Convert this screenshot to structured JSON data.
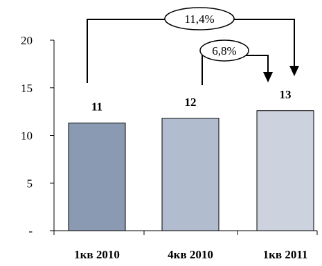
{
  "chart_data": {
    "type": "bar",
    "categories": [
      "1кв 2010",
      "4кв 2010",
      "1кв 2011"
    ],
    "values": [
      11.3,
      11.8,
      12.6
    ],
    "data_labels": [
      "11",
      "12",
      "13"
    ],
    "colors": [
      "#8a9ab3",
      "#b2bccf",
      "#cdd3de"
    ],
    "ylim": [
      0,
      20
    ],
    "yticks": [
      {
        "value": 0,
        "label": "-"
      },
      {
        "value": 5,
        "label": "5"
      },
      {
        "value": 10,
        "label": "10"
      },
      {
        "value": 15,
        "label": "15"
      },
      {
        "value": 20,
        "label": "20"
      }
    ],
    "grid": false,
    "annotations": [
      {
        "text": "11,4%",
        "from": "1кв 2010",
        "to": "1кв 2011"
      },
      {
        "text": "6,8%",
        "from": "4кв 2010",
        "to": "1кв 2011"
      }
    ]
  }
}
